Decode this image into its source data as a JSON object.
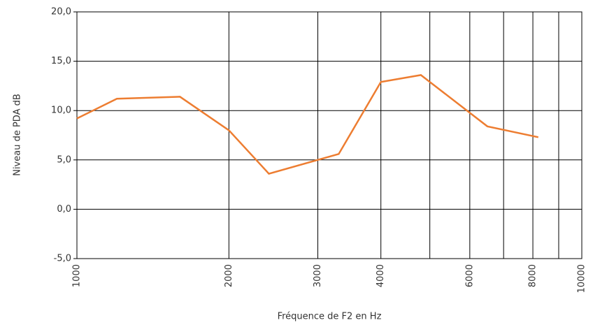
{
  "chart_data": {
    "type": "line",
    "xlabel": "Fréquence de F2 en Hz",
    "ylabel": "Niveau de PDA dB",
    "x": [
      1000,
      1200,
      1600,
      2000,
      2400,
      3300,
      4000,
      4800,
      6500,
      8200
    ],
    "series": [
      {
        "name": "Niveau de PDA",
        "color": "#ed7d31",
        "values": [
          9.2,
          11.2,
          11.4,
          8.0,
          3.6,
          5.6,
          12.9,
          13.6,
          8.4,
          7.3
        ]
      }
    ],
    "xscale": "log",
    "xlim": [
      1000,
      10000
    ],
    "xticks": [
      1000,
      2000,
      3000,
      4000,
      6000,
      8000,
      10000
    ],
    "xminor": [
      5000,
      7000,
      9000
    ],
    "ylim": [
      -5,
      20
    ],
    "yticks": [
      {
        "value": -5,
        "label": "-5,0"
      },
      {
        "value": 0,
        "label": "0,0"
      },
      {
        "value": 5,
        "label": "5,0"
      },
      {
        "value": 10,
        "label": "10,0"
      },
      {
        "value": 15,
        "label": "15,0"
      },
      {
        "value": 20,
        "label": "20,0"
      }
    ],
    "grid": true
  }
}
